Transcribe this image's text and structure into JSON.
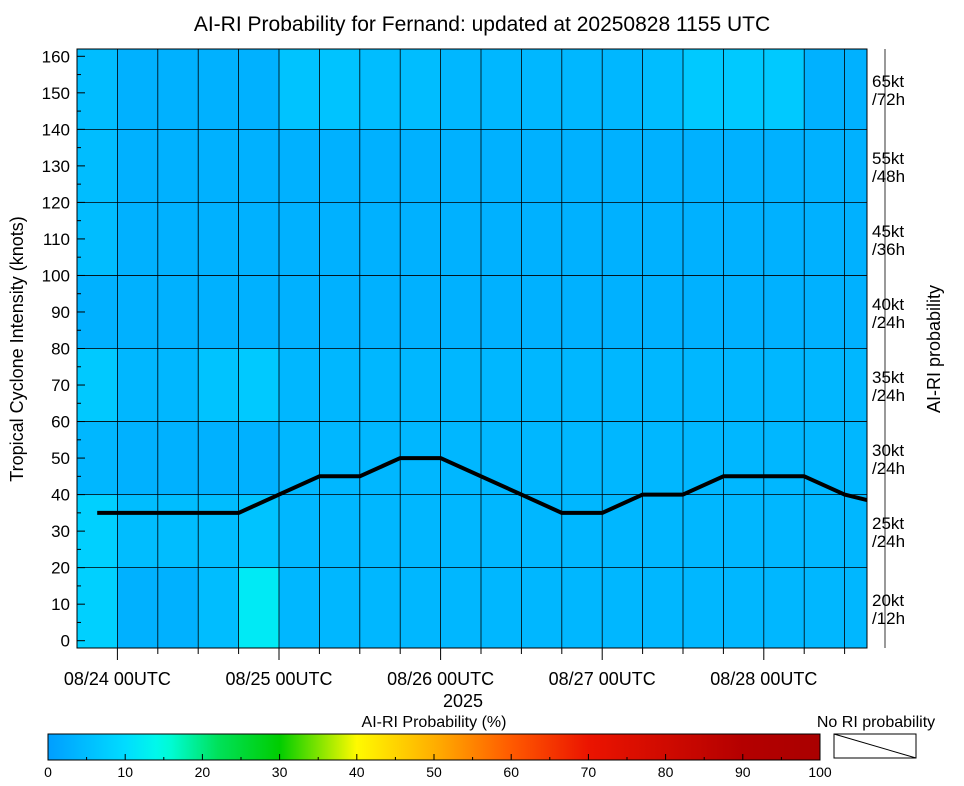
{
  "chart_data": {
    "type": "heatmap",
    "title": "AI-RI Probability for Fernand: updated at 20250828 1155 UTC",
    "ylabel": "Tropical Cyclone Intensity (knots)",
    "xlabel": "2025",
    "right_label": "AI-RI probability",
    "ylim": [
      -2,
      162
    ],
    "y_ticks": [
      0,
      10,
      20,
      30,
      40,
      50,
      60,
      70,
      80,
      90,
      100,
      110,
      120,
      130,
      140,
      150,
      160
    ],
    "x_tick_labels": [
      "08/24 00UTC",
      "08/25 00UTC",
      "08/26 00UTC",
      "08/27 00UTC",
      "08/28 00UTC"
    ],
    "time_start": "08/23 18UTC",
    "time_step_hours": 6,
    "bands": [
      {
        "label_line1": "20kt",
        "label_line2": "/12h",
        "y_range": [
          -2,
          20
        ]
      },
      {
        "label_line1": "25kt",
        "label_line2": "/24h",
        "y_range": [
          20,
          40
        ]
      },
      {
        "label_line1": "30kt",
        "label_line2": "/24h",
        "y_range": [
          40,
          60
        ]
      },
      {
        "label_line1": "35kt",
        "label_line2": "/24h",
        "y_range": [
          60,
          80
        ]
      },
      {
        "label_line1": "40kt",
        "label_line2": "/24h",
        "y_range": [
          80,
          100
        ]
      },
      {
        "label_line1": "45kt",
        "label_line2": "/36h",
        "y_range": [
          100,
          120
        ]
      },
      {
        "label_line1": "55kt",
        "label_line2": "/48h",
        "y_range": [
          120,
          140
        ]
      },
      {
        "label_line1": "65kt",
        "label_line2": "/72h",
        "y_range": [
          140,
          162
        ]
      }
    ],
    "probabilities": [
      [
        8,
        3,
        3,
        5,
        12,
        4,
        4,
        4,
        4,
        4,
        4,
        4,
        4,
        4,
        4,
        4,
        4,
        4,
        4,
        4,
        null
      ],
      [
        8,
        5,
        5,
        5,
        6,
        4,
        4,
        4,
        4,
        4,
        4,
        4,
        4,
        4,
        4,
        4,
        4,
        4,
        4,
        4,
        null
      ],
      [
        4,
        3,
        3,
        3,
        3,
        4,
        4,
        4,
        4,
        4,
        4,
        4,
        4,
        4,
        4,
        4,
        4,
        4,
        4,
        4,
        null
      ],
      [
        7,
        4,
        4,
        6,
        7,
        4,
        4,
        4,
        4,
        4,
        4,
        4,
        4,
        4,
        4,
        4,
        4,
        4,
        4,
        4,
        null
      ],
      [
        3,
        3,
        3,
        3,
        3,
        3,
        3,
        3,
        3,
        3,
        3,
        3,
        3,
        3,
        3,
        3,
        3,
        3,
        3,
        3,
        null
      ],
      [
        5,
        3,
        3,
        3,
        3,
        3,
        3,
        3,
        3,
        3,
        3,
        3,
        3,
        3,
        3,
        3,
        3,
        3,
        3,
        3,
        null
      ],
      [
        5,
        3,
        3,
        3,
        3,
        3,
        3,
        3,
        3,
        3,
        3,
        3,
        3,
        3,
        3,
        3,
        3,
        3,
        3,
        3,
        null
      ],
      [
        5,
        3,
        3,
        3,
        3,
        6,
        6,
        5,
        5,
        4,
        4,
        4,
        4,
        4,
        5,
        7,
        7,
        7,
        3,
        3,
        null
      ]
    ],
    "intensity_line": {
      "times": [
        "08/24 00UTC",
        "08/24 06UTC",
        "08/24 12UTC",
        "08/24 18UTC",
        "08/25 00UTC",
        "08/25 06UTC",
        "08/25 12UTC",
        "08/25 18UTC",
        "08/26 00UTC",
        "08/26 06UTC",
        "08/26 12UTC",
        "08/26 18UTC",
        "08/27 00UTC",
        "08/27 06UTC",
        "08/27 12UTC",
        "08/27 18UTC",
        "08/28 00UTC",
        "08/28 06UTC",
        "08/28 12UTC"
      ],
      "values": [
        35,
        35,
        35,
        35,
        40,
        45,
        45,
        50,
        50,
        45,
        40,
        35,
        35,
        40,
        40,
        45,
        45,
        45,
        40
      ],
      "end_value": 38.5,
      "color": "#000000"
    },
    "colorbar": {
      "title": "AI-RI Probability (%)",
      "ticks": [
        "0",
        "10",
        "20",
        "30",
        "40",
        "50",
        "60",
        "70",
        "80",
        "90",
        "100"
      ],
      "no_ri_label": "No RI probability"
    }
  }
}
